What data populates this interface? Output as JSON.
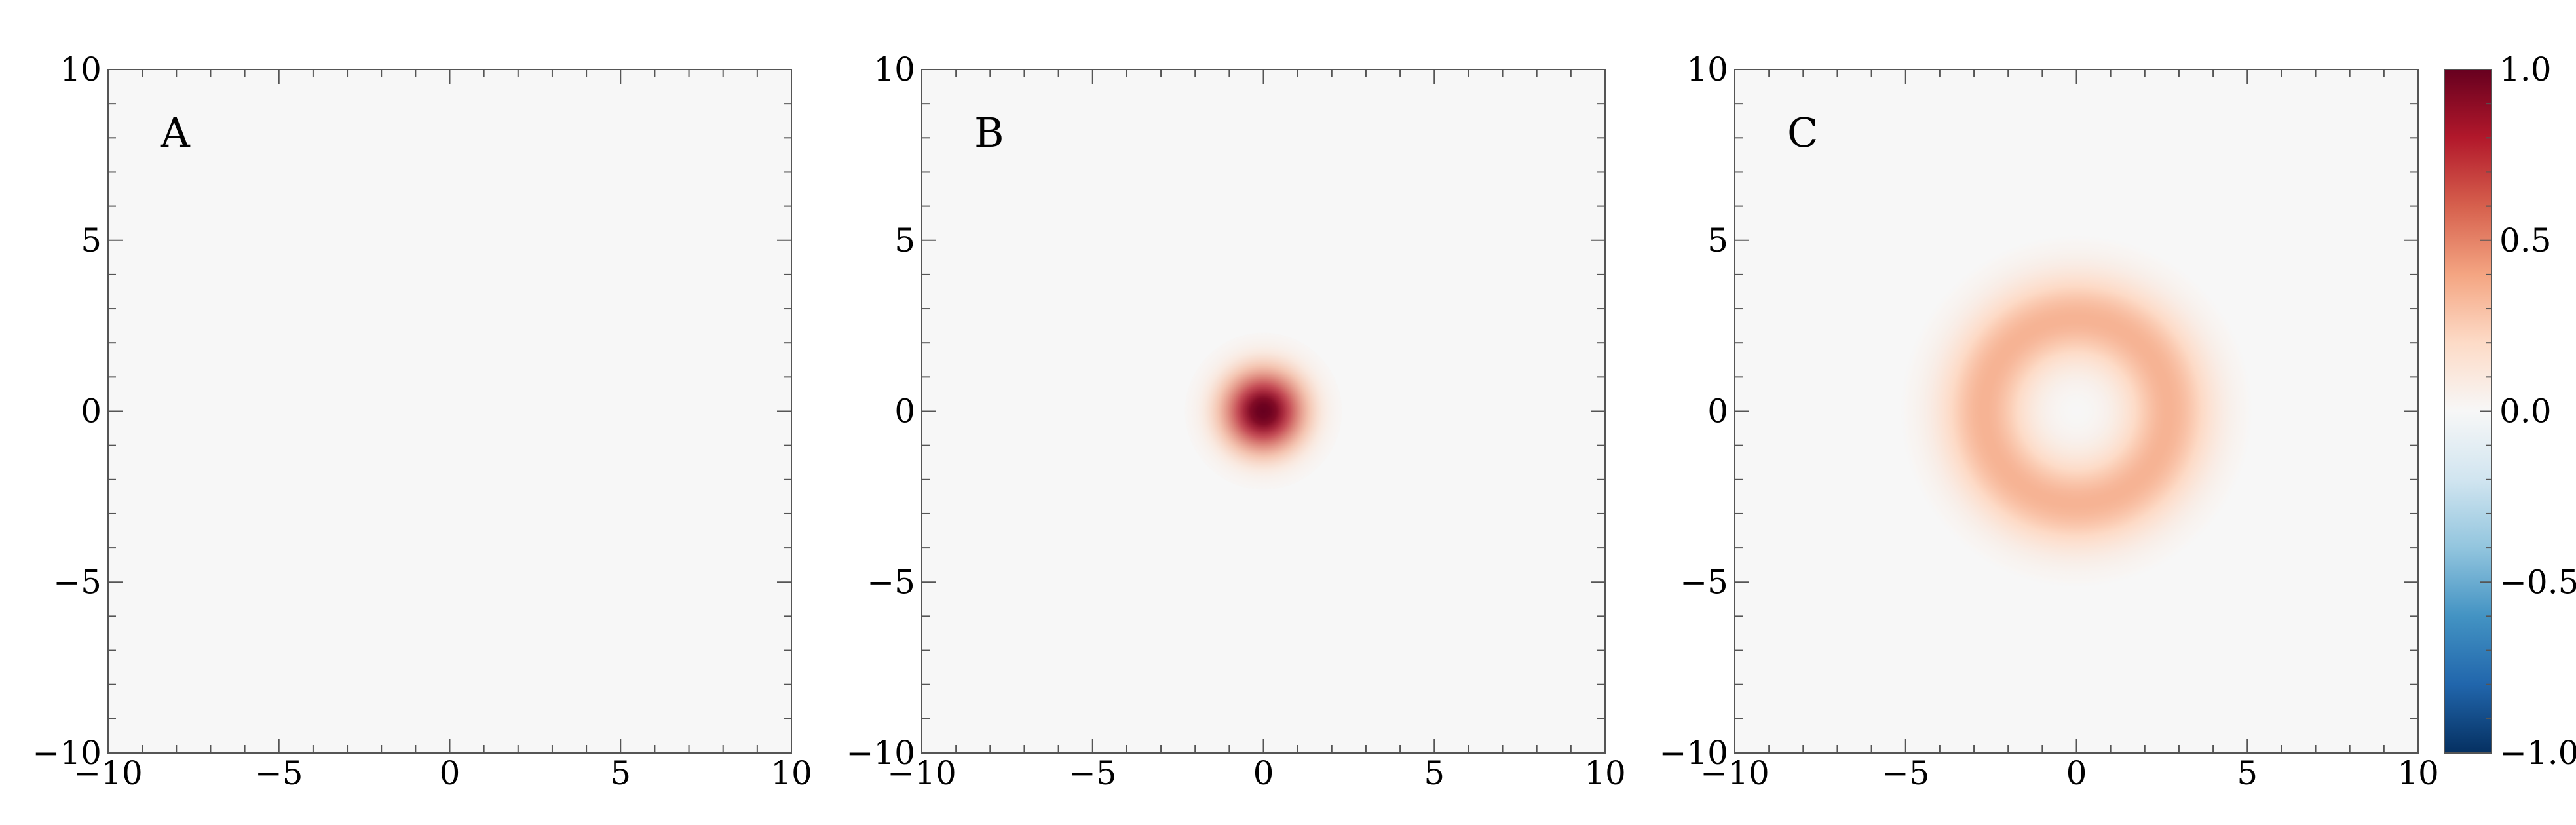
{
  "chart_data": [
    {
      "type": "heatmap",
      "panel_label": "A",
      "pattern": "uniform",
      "xlim": [
        -10,
        10
      ],
      "ylim": [
        -10,
        10
      ],
      "xticks": [
        -10,
        -5,
        0,
        5,
        10
      ],
      "yticks": [
        -10,
        -5,
        0,
        5,
        10
      ],
      "value_description": "value 0.0 everywhere"
    },
    {
      "type": "heatmap",
      "panel_label": "B",
      "pattern": "gaussian_disk",
      "center": [
        0,
        0
      ],
      "peak": 1.0,
      "radius": 2.3,
      "xlim": [
        -10,
        10
      ],
      "ylim": [
        -10,
        10
      ],
      "xticks": [
        -10,
        -5,
        0,
        5,
        10
      ],
      "yticks": [
        -10,
        -5,
        0,
        5,
        10
      ]
    },
    {
      "type": "heatmap",
      "panel_label": "C",
      "pattern": "ring",
      "center": [
        0,
        0
      ],
      "peak": 0.35,
      "ring_radius": 2.7,
      "ring_width": 1.3,
      "xlim": [
        -10,
        10
      ],
      "ylim": [
        -10,
        10
      ],
      "xticks": [
        -10,
        -5,
        0,
        5,
        10
      ],
      "yticks": [
        -10,
        -5,
        0,
        5,
        10
      ]
    }
  ],
  "colorbar": {
    "colormap": "RdBu_r",
    "range": [
      -1.0,
      1.0
    ],
    "ticks": [
      1.0,
      0.5,
      0.0,
      -0.5,
      -1.0
    ],
    "tick_labels": [
      "1.0",
      "0.5",
      "0.0",
      "−0.5",
      "−1.0"
    ],
    "colors": [
      "#053061",
      "#2166ac",
      "#4393c3",
      "#92c5de",
      "#d1e5f0",
      "#f7f7f7",
      "#fddbc7",
      "#f4a582",
      "#d6604d",
      "#b2182b",
      "#67001f"
    ]
  }
}
